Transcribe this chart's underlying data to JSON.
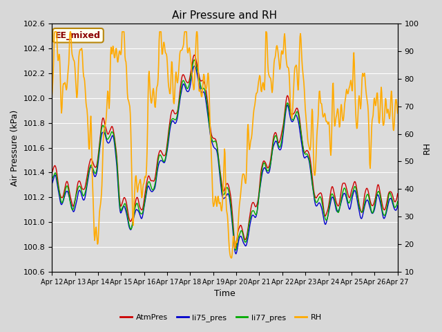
{
  "title": "Air Pressure and RH",
  "xlabel": "Time",
  "ylabel_left": "Air Pressure (kPa)",
  "ylabel_right": "RH",
  "annotation": "EE_mixed",
  "ylim_left": [
    100.6,
    102.6
  ],
  "ylim_right": [
    10,
    100
  ],
  "yticks_left": [
    100.6,
    100.8,
    101.0,
    101.2,
    101.4,
    101.6,
    101.8,
    102.0,
    102.2,
    102.4,
    102.6
  ],
  "yticks_right": [
    10,
    20,
    30,
    40,
    50,
    60,
    70,
    80,
    90,
    100
  ],
  "xtick_labels": [
    "Apr 12",
    "Apr 13",
    "Apr 14",
    "Apr 15",
    "Apr 16",
    "Apr 17",
    "Apr 18",
    "Apr 19",
    "Apr 20",
    "Apr 21",
    "Apr 22",
    "Apr 23",
    "Apr 24",
    "Apr 25",
    "Apr 26",
    "Apr 27"
  ],
  "colors": {
    "AtmPres": "#cc0000",
    "li75_pres": "#0000cc",
    "li77_pres": "#00aa00",
    "RH": "#ffaa00"
  },
  "fig_bg": "#d8d8d8",
  "plot_bg": "#dcdcdc",
  "legend_labels": [
    "AtmPres",
    "li75_pres",
    "li77_pres",
    "RH"
  ],
  "grid_color": "#ffffff",
  "linewidth_pres": 1.0,
  "linewidth_rh": 1.2
}
